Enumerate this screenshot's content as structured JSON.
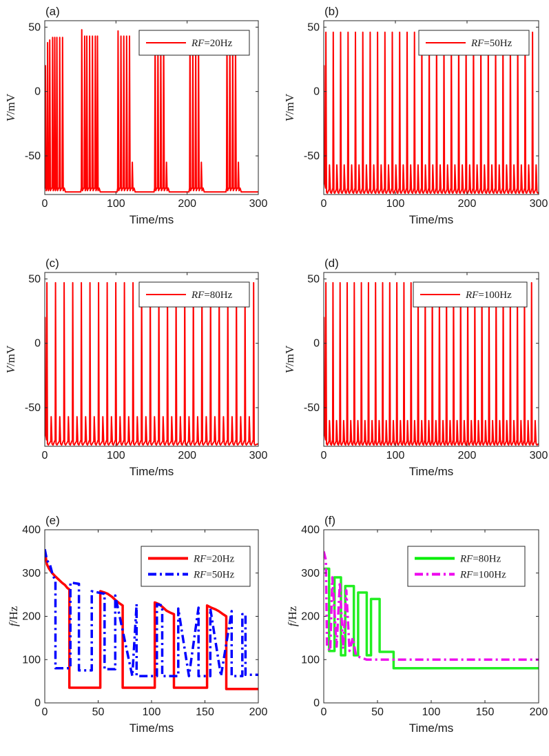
{
  "panels": [
    {
      "label": "(a)",
      "type": "line",
      "xlim": [
        0,
        300
      ],
      "ylim": [
        -80,
        55
      ],
      "xticks": [
        0,
        100,
        200,
        300
      ],
      "yticks": [
        50,
        0,
        -50
      ],
      "xlabel": "Time/ms",
      "ylabel_italic": "V",
      "ylabel_rest": "/mV",
      "legend": [
        {
          "italic": "RF",
          "rest": "=20Hz",
          "color": "#ff0000",
          "dash": "solid",
          "width": 2
        }
      ],
      "series": [
        {
          "name": "RF=20Hz",
          "color": "#ff0000",
          "bursts": [
            {
              "spikes": [
                1,
                4,
                7,
                11,
                14,
                17,
                21,
                25
              ],
              "peaks": [
                20,
                38,
                40,
                42,
                42,
                42,
                42,
                42
              ],
              "trough": -75
            },
            {
              "spikes": [
                52,
                56,
                59,
                63,
                67,
                71,
                74
              ],
              "peaks": [
                48,
                43,
                43,
                43,
                43,
                43,
                43
              ],
              "trough": -75
            },
            {
              "spikes": [
                103,
                107,
                111,
                115,
                119,
                123
              ],
              "peaks": [
                47,
                43,
                43,
                43,
                43,
                -55
              ],
              "trough": -75
            },
            {
              "spikes": [
                155,
                159,
                163,
                167,
                171
              ],
              "peaks": [
                47,
                43,
                43,
                43,
                -55
              ],
              "trough": -75
            },
            {
              "spikes": [
                204,
                208,
                212,
                216,
                220
              ],
              "peaks": [
                47,
                43,
                43,
                43,
                -55
              ],
              "trough": -75
            },
            {
              "spikes": [
                256,
                260,
                264,
                268,
                272
              ],
              "peaks": [
                47,
                43,
                43,
                43,
                -55
              ],
              "trough": -75
            }
          ],
          "rest": -78
        }
      ]
    },
    {
      "label": "(b)",
      "type": "line",
      "xlim": [
        0,
        300
      ],
      "ylim": [
        -80,
        55
      ],
      "xticks": [
        0,
        100,
        200,
        300
      ],
      "yticks": [
        50,
        0,
        -50
      ],
      "xlabel": "Time/ms",
      "ylabel_italic": "V",
      "ylabel_rest": "/mV",
      "legend": [
        {
          "italic": "RF",
          "rest": "=50Hz",
          "color": "#ff0000",
          "dash": "solid",
          "width": 2
        }
      ],
      "series": [
        {
          "name": "RF=50Hz",
          "color": "#ff0000",
          "train_start": 1,
          "train_period": 10.3,
          "small_offset": 5,
          "small_peak": -57,
          "big_peak": 46,
          "rest": -78
        }
      ]
    },
    {
      "label": "(c)",
      "type": "line",
      "xlim": [
        0,
        300
      ],
      "ylim": [
        -80,
        55
      ],
      "xticks": [
        0,
        100,
        200,
        300
      ],
      "yticks": [
        50,
        0,
        -50
      ],
      "xlabel": "Time/ms",
      "ylabel_italic": "V",
      "ylabel_rest": "/mV",
      "legend": [
        {
          "italic": "RF",
          "rest": "=80Hz",
          "color": "#ff0000",
          "dash": "solid",
          "width": 2
        }
      ],
      "series": [
        {
          "name": "RF=80Hz",
          "color": "#ff0000",
          "train_start": 1,
          "train_period": 12.1,
          "small_offset": 6,
          "small_peak": -57,
          "big_peak": 47,
          "rest": -78
        }
      ]
    },
    {
      "label": "(d)",
      "type": "line",
      "xlim": [
        0,
        300
      ],
      "ylim": [
        -80,
        55
      ],
      "xticks": [
        0,
        100,
        200,
        300
      ],
      "yticks": [
        50,
        0,
        -50
      ],
      "xlabel": "Time/ms",
      "ylabel_italic": "V",
      "ylabel_rest": "/mV",
      "legend": [
        {
          "italic": "RF",
          "rest": "=100Hz",
          "color": "#ff0000",
          "dash": "solid",
          "width": 2
        }
      ],
      "series": [
        {
          "name": "RF=100Hz",
          "color": "#ff0000",
          "train_start": 1,
          "train_period": 9.9,
          "small_offset": 5,
          "small_peak": -60,
          "big_peak": 47,
          "rest": -78
        }
      ]
    },
    {
      "label": "(e)",
      "type": "step",
      "xlim": [
        0,
        200
      ],
      "ylim": [
        0,
        400
      ],
      "xticks": [
        0,
        50,
        100,
        150,
        200
      ],
      "yticks": [
        0,
        100,
        200,
        300,
        400
      ],
      "xlabel": "Time/ms",
      "ylabel_italic": "f",
      "ylabel_rest": "/Hz",
      "legend": [
        {
          "italic": "RF",
          "rest": "=20Hz",
          "color": "#ff0000",
          "dash": "solid",
          "width": 4
        },
        {
          "italic": "RF",
          "rest": "=50Hz",
          "color": "#0000ff",
          "dash": "dashdot",
          "width": 4
        }
      ],
      "series": [
        {
          "name": "RF=20Hz",
          "color": "#ff0000",
          "dash": "solid",
          "x": [
            0,
            2,
            4,
            7,
            10,
            13,
            16,
            19,
            21,
            23,
            23,
            52,
            52,
            56,
            59,
            63,
            66,
            70,
            73,
            73,
            103,
            103,
            107,
            111,
            114,
            118,
            121,
            121,
            152,
            152,
            156,
            160,
            163,
            167,
            170,
            170,
            200
          ],
          "y": [
            350,
            320,
            310,
            300,
            292,
            285,
            278,
            272,
            266,
            262,
            35,
            35,
            258,
            255,
            252,
            245,
            238,
            230,
            225,
            35,
            35,
            232,
            228,
            220,
            213,
            208,
            205,
            35,
            35,
            225,
            220,
            216,
            212,
            205,
            200,
            32,
            32
          ]
        },
        {
          "name": "RF=50Hz",
          "color": "#0000ff",
          "dash": "dashdot",
          "x": [
            0,
            2,
            5,
            7,
            10,
            10,
            24,
            24,
            32,
            32,
            44,
            44,
            56,
            56,
            66,
            66,
            82,
            82,
            86,
            86,
            105,
            105,
            110,
            110,
            125,
            125,
            135,
            135,
            144,
            144,
            155,
            155,
            165,
            165,
            175,
            175,
            185,
            185,
            188,
            188,
            200
          ],
          "y": [
            355,
            330,
            318,
            300,
            280,
            80,
            80,
            278,
            275,
            75,
            75,
            258,
            252,
            78,
            78,
            248,
            62,
            62,
            228,
            62,
            62,
            228,
            225,
            62,
            62,
            218,
            62,
            62,
            220,
            62,
            62,
            218,
            62,
            62,
            212,
            62,
            62,
            205,
            205,
            65,
            65
          ]
        }
      ]
    },
    {
      "label": "(f)",
      "type": "step",
      "xlim": [
        0,
        200
      ],
      "ylim": [
        0,
        400
      ],
      "xticks": [
        0,
        50,
        100,
        150,
        200
      ],
      "yticks": [
        0,
        100,
        200,
        300,
        400
      ],
      "xlabel": "Time/ms",
      "ylabel_italic": "f",
      "ylabel_rest": "/Hz",
      "legend": [
        {
          "italic": "RF",
          "rest": "=80Hz",
          "color": "#00ee00",
          "dash": "solid",
          "width": 4
        },
        {
          "italic": "RF",
          "rest": "=100Hz",
          "color": "#ee00ee",
          "dash": "dashdot",
          "width": 4
        }
      ],
      "series": [
        {
          "name": "RF=80Hz",
          "color": "#22ee22",
          "dash": "solid",
          "x": [
            0,
            5,
            5,
            10,
            10,
            16,
            16,
            20,
            20,
            28,
            28,
            32,
            32,
            40,
            40,
            44,
            44,
            52,
            52,
            56,
            56,
            65,
            65,
            200
          ],
          "y": [
            310,
            310,
            120,
            120,
            290,
            290,
            110,
            110,
            270,
            270,
            110,
            110,
            255,
            255,
            110,
            110,
            240,
            240,
            118,
            118,
            118,
            118,
            80,
            80
          ]
        },
        {
          "name": "RF=100Hz",
          "color": "#ee11ee",
          "dash": "dashdot",
          "x": [
            0,
            2,
            3,
            6,
            8,
            12,
            15,
            18,
            21,
            24,
            27,
            30,
            34,
            40,
            45,
            60,
            200
          ],
          "y": [
            350,
            330,
            130,
            120,
            290,
            130,
            280,
            125,
            260,
            120,
            150,
            110,
            105,
            100,
            100,
            100,
            100
          ]
        }
      ]
    }
  ]
}
